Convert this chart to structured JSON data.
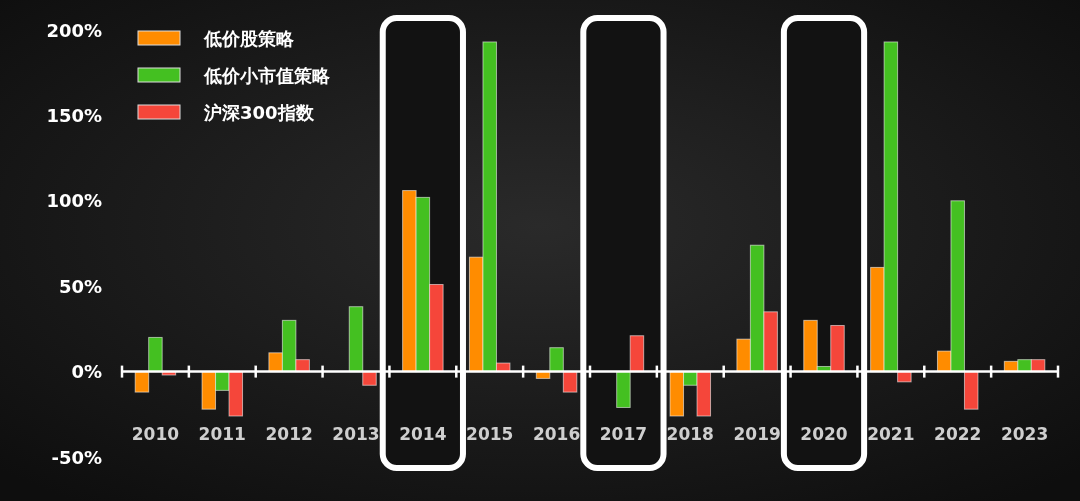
{
  "chart_data": {
    "type": "bar",
    "categories": [
      "2010",
      "2011",
      "2012",
      "2013",
      "2014",
      "2015",
      "2016",
      "2017",
      "2018",
      "2019",
      "2020",
      "2021",
      "2022",
      "2023"
    ],
    "series": [
      {
        "name": "低价股策略",
        "color": "#ff8c00",
        "values": [
          -12,
          -22,
          11,
          0,
          106,
          67,
          -4,
          0,
          -26,
          19,
          30,
          61,
          12,
          6
        ]
      },
      {
        "name": "低价小市值策略",
        "color": "#44c021",
        "values": [
          20,
          -11,
          30,
          38,
          102,
          193,
          14,
          -21,
          -8,
          74,
          3,
          193,
          100,
          7
        ]
      },
      {
        "name": "沪深300指数",
        "color": "#f5463a",
        "values": [
          -2,
          -26,
          7,
          -8,
          51,
          5,
          -12,
          21,
          -26,
          35,
          27,
          -6,
          -22,
          7
        ]
      }
    ],
    "ylim": [
      -50,
      200
    ],
    "yticks": [
      {
        "value": -50,
        "label": "-50%"
      },
      {
        "value": 0,
        "label": "0%"
      },
      {
        "value": 50,
        "label": "50%"
      },
      {
        "value": 100,
        "label": "100%"
      },
      {
        "value": 150,
        "label": "150%"
      },
      {
        "value": 200,
        "label": "200%"
      }
    ],
    "bands": [
      {
        "axis": "x",
        "from": "2014",
        "to": "2014",
        "color": "#ffffff"
      },
      {
        "axis": "x",
        "from": "2017",
        "to": "2017",
        "color": "#ffffff"
      },
      {
        "axis": "x",
        "from": "2020",
        "to": "2020",
        "color": "#ffffff"
      }
    ],
    "legend": "top left"
  }
}
